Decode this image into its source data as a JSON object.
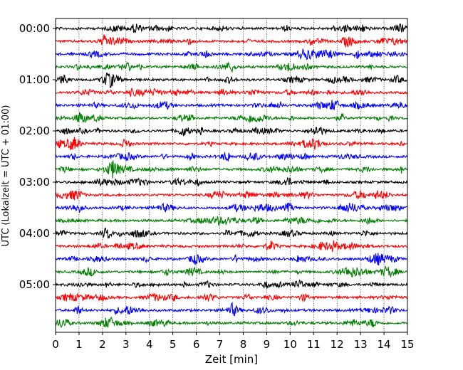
{
  "chart_data": {
    "type": "line",
    "title": "",
    "xlabel": "Zeit  [min]",
    "ylabel": "UTC (Lokalzeit = UTC + 01:00)",
    "xlim": [
      0,
      15
    ],
    "x_ticks": [
      "0",
      "1",
      "2",
      "3",
      "4",
      "5",
      "6",
      "7",
      "8",
      "9",
      "10",
      "11",
      "12",
      "13",
      "14",
      "15"
    ],
    "y_tick_labels": [
      "00:00",
      "01:00",
      "02:00",
      "03:00",
      "04:00",
      "05:00"
    ],
    "traces_per_hour": 4,
    "trace_count": 24,
    "colors": [
      "#000000",
      "#ff0000",
      "#0000ff",
      "#007f00"
    ],
    "grid": "vertical dotted at each minute"
  }
}
